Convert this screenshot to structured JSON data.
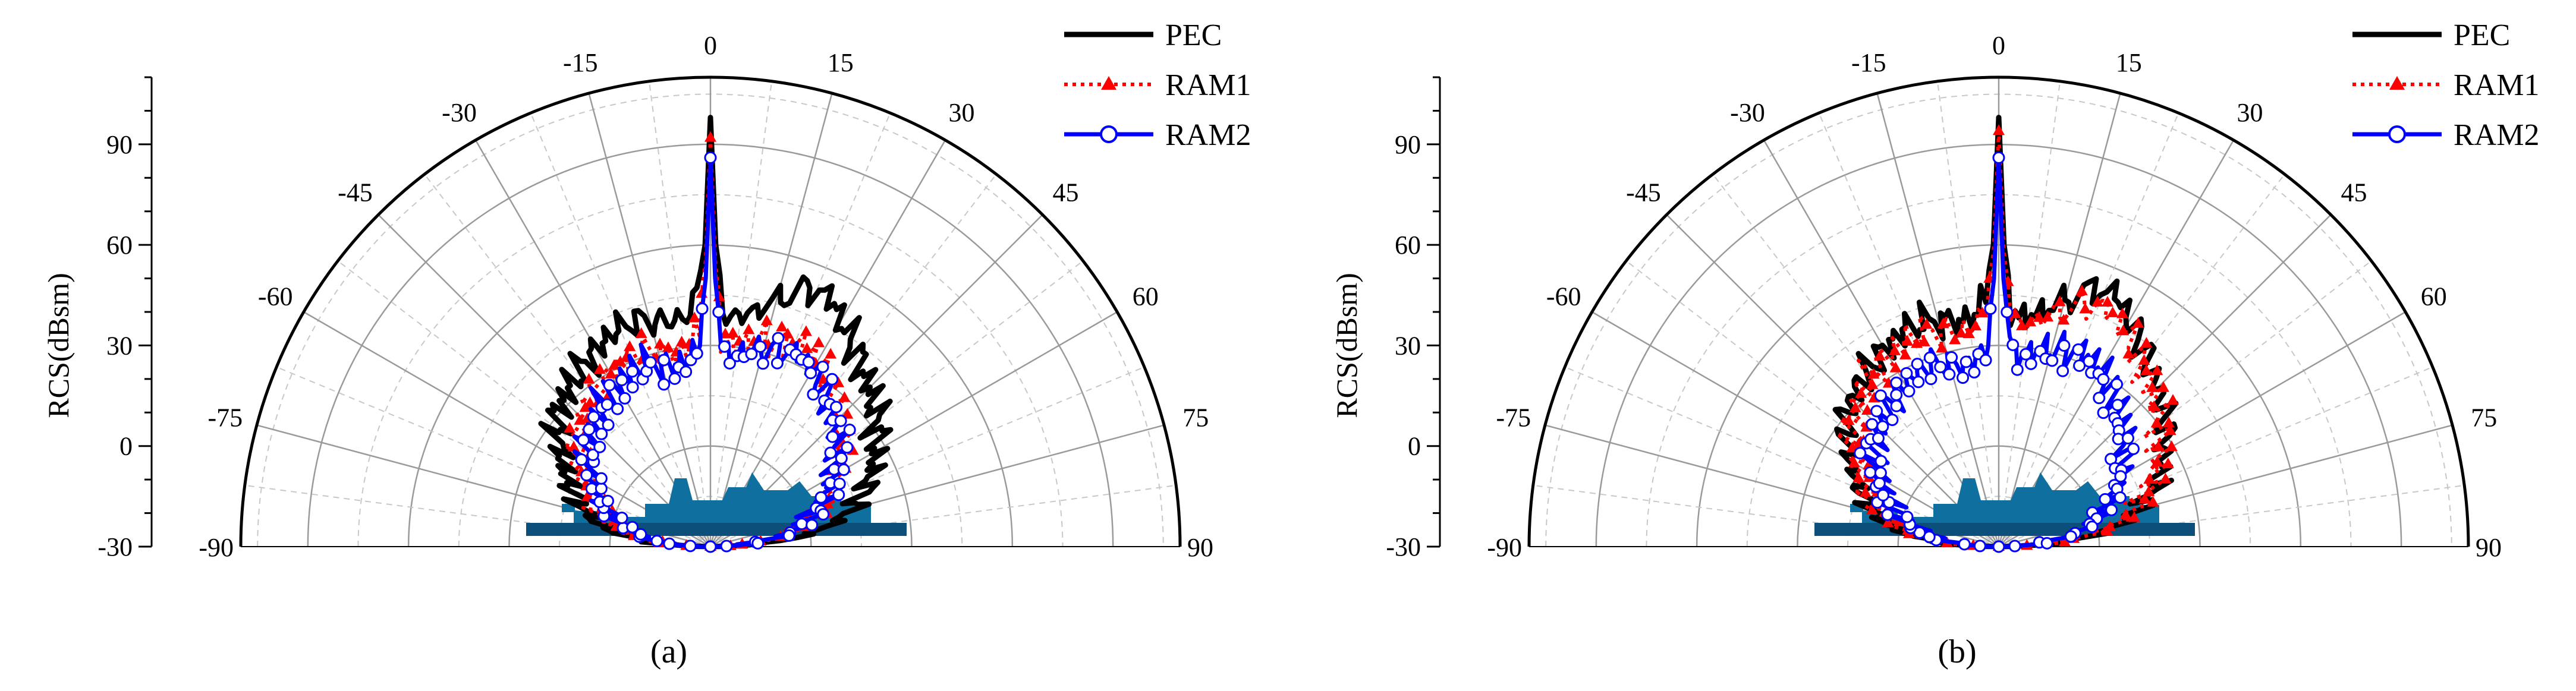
{
  "chart_data": [
    {
      "type": "polar-line",
      "panel_label": "(a)",
      "ylabel": "RCS(dBsm)",
      "r_ticks": [
        -30,
        0,
        30,
        60,
        90
      ],
      "r_range": [
        -30,
        110
      ],
      "angle_ticks": [
        -90,
        -75,
        -60,
        -45,
        -30,
        -15,
        0,
        15,
        30,
        45,
        60,
        75,
        90
      ],
      "angle_range": [
        -90,
        90
      ],
      "grid": true,
      "legend": {
        "placement": "top-right",
        "entries": [
          "PEC",
          "RAM1",
          "RAM2"
        ]
      },
      "colors": {
        "PEC": "#000000",
        "RAM1": "#ff0000",
        "RAM2": "#0000ff"
      },
      "ship_silhouette": "ship-side-view",
      "series": [
        {
          "name": "PEC",
          "angles": [
            -90,
            -85,
            -80,
            -75,
            -70,
            -65,
            -60,
            -55,
            -50,
            -45,
            -40,
            -35,
            -30,
            -25,
            -20,
            -15,
            -10,
            -5,
            -3,
            -1,
            0,
            1,
            3,
            5,
            10,
            15,
            20,
            25,
            30,
            35,
            40,
            45,
            50,
            55,
            60,
            65,
            70,
            75,
            80,
            85,
            90
          ],
          "values": [
            -30,
            -10,
            2,
            8,
            12,
            17,
            21,
            25,
            30,
            32,
            34,
            36,
            38,
            40,
            41,
            40,
            38,
            40,
            45,
            60,
            98,
            60,
            42,
            38,
            41,
            46,
            52,
            53,
            48,
            44,
            40,
            37,
            34,
            31,
            27,
            23,
            19,
            14,
            6,
            -8,
            -30
          ]
        },
        {
          "name": "RAM1",
          "angles": [
            -90,
            -85,
            -80,
            -75,
            -70,
            -65,
            -60,
            -55,
            -50,
            -45,
            -40,
            -35,
            -30,
            -25,
            -20,
            -15,
            -10,
            -5,
            -3,
            -1,
            0,
            1,
            3,
            5,
            10,
            15,
            20,
            25,
            30,
            35,
            40,
            45,
            50,
            55,
            60,
            65,
            70,
            75,
            80,
            85,
            90
          ],
          "values": [
            -30,
            -12,
            -4,
            2,
            6,
            10,
            14,
            18,
            22,
            24,
            26,
            28,
            30,
            31,
            32,
            30,
            28,
            31,
            36,
            55,
            92,
            55,
            34,
            30,
            32,
            34,
            35,
            36,
            34,
            30,
            27,
            24,
            21,
            18,
            14,
            10,
            6,
            2,
            -5,
            -15,
            -30
          ]
        },
        {
          "name": "RAM2",
          "angles": [
            -90,
            -85,
            -80,
            -75,
            -70,
            -65,
            -60,
            -55,
            -50,
            -45,
            -40,
            -35,
            -30,
            -25,
            -20,
            -15,
            -10,
            -5,
            -3,
            -1,
            0,
            1,
            3,
            5,
            10,
            15,
            20,
            25,
            30,
            35,
            40,
            45,
            50,
            55,
            60,
            65,
            70,
            75,
            80,
            85,
            90
          ],
          "values": [
            -30,
            -15,
            -8,
            -2,
            3,
            7,
            11,
            15,
            18,
            20,
            22,
            24,
            26,
            27,
            28,
            26,
            25,
            27,
            32,
            50,
            86,
            50,
            30,
            27,
            29,
            31,
            32,
            33,
            31,
            28,
            25,
            22,
            19,
            16,
            12,
            8,
            4,
            0,
            -6,
            -18,
            -30
          ]
        }
      ]
    },
    {
      "type": "polar-line",
      "panel_label": "(b)",
      "ylabel": "RCS(dBsm)",
      "r_ticks": [
        -30,
        0,
        30,
        60,
        90
      ],
      "r_range": [
        -30,
        110
      ],
      "angle_ticks": [
        -90,
        -75,
        -60,
        -45,
        -30,
        -15,
        0,
        15,
        30,
        45,
        60,
        75,
        90
      ],
      "angle_range": [
        -90,
        90
      ],
      "grid": true,
      "legend": {
        "placement": "top-right",
        "entries": [
          "PEC",
          "RAM1",
          "RAM2"
        ]
      },
      "colors": {
        "PEC": "#000000",
        "RAM1": "#ff0000",
        "RAM2": "#0000ff"
      },
      "ship_silhouette": "ship-side-view",
      "series": [
        {
          "name": "PEC",
          "angles": [
            -90,
            -85,
            -80,
            -75,
            -70,
            -65,
            -60,
            -55,
            -50,
            -45,
            -40,
            -35,
            -30,
            -25,
            -20,
            -15,
            -10,
            -5,
            -3,
            -1,
            0,
            1,
            3,
            5,
            10,
            15,
            20,
            25,
            30,
            35,
            40,
            45,
            50,
            55,
            60,
            65,
            70,
            75,
            80,
            85,
            90
          ],
          "values": [
            -30,
            -10,
            2,
            8,
            12,
            17,
            21,
            25,
            30,
            32,
            34,
            36,
            38,
            40,
            41,
            40,
            38,
            40,
            45,
            60,
            98,
            60,
            42,
            38,
            41,
            46,
            52,
            53,
            48,
            44,
            40,
            37,
            34,
            31,
            27,
            23,
            19,
            14,
            6,
            -8,
            -30
          ]
        },
        {
          "name": "RAM1",
          "angles": [
            -90,
            -85,
            -80,
            -75,
            -70,
            -65,
            -60,
            -55,
            -50,
            -45,
            -40,
            -35,
            -30,
            -25,
            -20,
            -15,
            -10,
            -5,
            -3,
            -1,
            0,
            1,
            3,
            5,
            10,
            15,
            20,
            25,
            30,
            35,
            40,
            45,
            50,
            55,
            60,
            65,
            70,
            75,
            80,
            85,
            90
          ],
          "values": [
            -30,
            -11,
            0,
            6,
            10,
            15,
            19,
            23,
            27,
            30,
            32,
            34,
            36,
            37,
            38,
            37,
            35,
            37,
            42,
            58,
            94,
            58,
            40,
            36,
            39,
            43,
            47,
            48,
            45,
            41,
            38,
            35,
            32,
            29,
            25,
            21,
            17,
            12,
            4,
            -9,
            -30
          ]
        },
        {
          "name": "RAM2",
          "angles": [
            -90,
            -85,
            -80,
            -75,
            -70,
            -65,
            -60,
            -55,
            -50,
            -45,
            -40,
            -35,
            -30,
            -25,
            -20,
            -15,
            -10,
            -5,
            -3,
            -1,
            0,
            1,
            3,
            5,
            10,
            15,
            20,
            25,
            30,
            35,
            40,
            45,
            50,
            55,
            60,
            65,
            70,
            75,
            80,
            85,
            90
          ],
          "values": [
            -30,
            -16,
            -8,
            -2,
            3,
            7,
            11,
            15,
            18,
            20,
            22,
            24,
            26,
            27,
            28,
            26,
            25,
            27,
            32,
            50,
            86,
            50,
            30,
            27,
            29,
            31,
            32,
            33,
            31,
            28,
            25,
            22,
            19,
            16,
            12,
            8,
            4,
            0,
            -6,
            -18,
            -30
          ]
        }
      ]
    }
  ]
}
